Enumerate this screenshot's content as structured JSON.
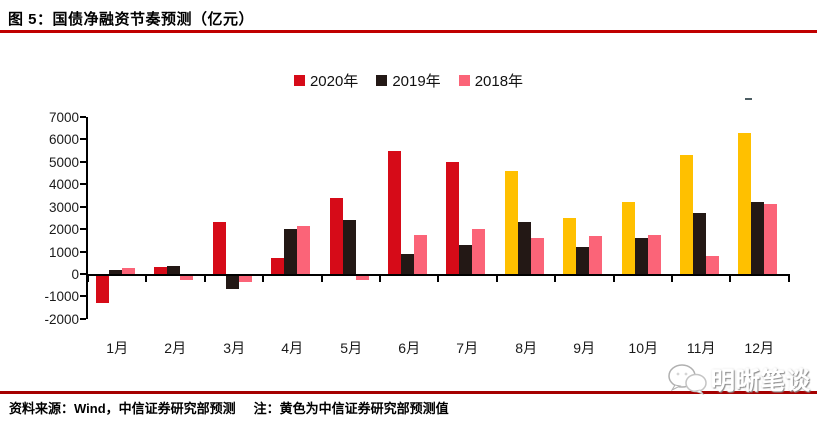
{
  "header": {
    "title": "图 5：国债净融资节奏预测（亿元）"
  },
  "chart_data": {
    "type": "bar",
    "title": "国债净融资节奏预测（亿元）",
    "unit": "亿元",
    "categories": [
      "1月",
      "2月",
      "3月",
      "4月",
      "5月",
      "6月",
      "7月",
      "8月",
      "9月",
      "10月",
      "11月",
      "12月"
    ],
    "series": [
      {
        "name": "2020年",
        "color": "#d60b18",
        "forecast_color": "#ffc000",
        "forecast_start_index": 7,
        "values": [
          -1200,
          300,
          2300,
          700,
          3400,
          5500,
          5000,
          4600,
          2500,
          3200,
          5300,
          6300
        ]
      },
      {
        "name": "2019年",
        "color": "#231815",
        "values": [
          200,
          350,
          -600,
          2000,
          2400,
          900,
          1300,
          2300,
          1200,
          1600,
          2700,
          3200
        ]
      },
      {
        "name": "2018年",
        "color": "#fb6478",
        "values": [
          250,
          -200,
          -250,
          2150,
          -200,
          1750,
          2000,
          1600,
          1700,
          1750,
          800,
          3100
        ]
      }
    ],
    "ylim": [
      -2000,
      7000
    ],
    "ytick_step": 1000,
    "grid": false,
    "legend_position": "top"
  },
  "footer": {
    "source": "资料来源：Wind，中信证券研究部预测",
    "note": "注：黄色为中信证券研究部预测值"
  },
  "watermark": {
    "label": "明晰笔谈"
  },
  "colors": {
    "title_rule": "#c00000",
    "footer_rule": "#a50000",
    "bar_2020": "#d60b18",
    "bar_2020_forecast": "#ffc000",
    "bar_2019": "#231815",
    "bar_2018": "#fb6478"
  }
}
